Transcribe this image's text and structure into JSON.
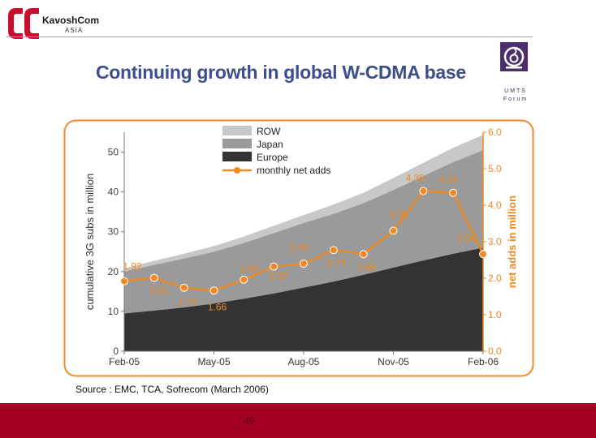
{
  "header": {
    "logo_name": "KavoshCom",
    "logo_sub": "ASIA",
    "umts_logo": "UMTS Forum",
    "umts_line1": "UMTS",
    "umts_line2": "Forum"
  },
  "slide": {
    "title": "Continuing growth in global W-CDMA base",
    "source": "Source : EMC, TCA, Sofrecom (March 2006)",
    "page_number": "49"
  },
  "colors": {
    "orange": "#f08a24",
    "europe": "#333333",
    "japan": "#9a9a9a",
    "row": "#c8c8c8",
    "title": "#3d4e8c",
    "footer": "#a40021"
  },
  "chart_data": {
    "type": "area",
    "title": "",
    "x": [
      "Feb-05",
      "Mar-05",
      "Apr-05",
      "May-05",
      "Jun-05",
      "Jul-05",
      "Aug-05",
      "Sep-05",
      "Oct-05",
      "Nov-05",
      "Dec-05",
      "Jan-06",
      "Feb-06"
    ],
    "x_tick_labels": [
      "Feb-05",
      "May-05",
      "Aug-05",
      "Nov-05",
      "Feb-06"
    ],
    "ylabel_left": "cumulative 3G subs in million",
    "ylabel_right": "net adds in million",
    "ylim_left": [
      0,
      55
    ],
    "ylim_right": [
      0,
      6.0
    ],
    "yticks_left": [
      "0",
      "10",
      "20",
      "30",
      "40",
      "50"
    ],
    "yticks_right": [
      "0.0",
      "1.0",
      "2.0",
      "3.0",
      "4.0",
      "5.0",
      "6.0"
    ],
    "legend_position": "top-left",
    "series": [
      {
        "name": "Europe",
        "kind": "stacked-area",
        "color": "#333333",
        "values": [
          9.5,
          10.2,
          11.0,
          12.0,
          13.2,
          14.5,
          16.0,
          17.5,
          19.2,
          21.0,
          22.8,
          24.5,
          26.0
        ]
      },
      {
        "name": "Japan",
        "kind": "stacked-area",
        "color": "#9a9a9a",
        "values": [
          10.5,
          11.5,
          12.3,
          13.0,
          14.0,
          15.2,
          16.2,
          17.0,
          18.0,
          19.5,
          21.2,
          23.0,
          24.5
        ]
      },
      {
        "name": "ROW",
        "kind": "stacked-area",
        "color": "#c8c8c8",
        "values": [
          0.8,
          1.0,
          1.2,
          1.4,
          1.6,
          1.8,
          2.0,
          2.3,
          2.6,
          3.0,
          3.3,
          3.6,
          3.8
        ]
      },
      {
        "name": "monthly net adds",
        "kind": "line",
        "axis": "right",
        "color": "#f08a24",
        "values": [
          1.92,
          2.01,
          1.74,
          1.66,
          1.96,
          2.32,
          2.4,
          2.77,
          2.66,
          3.3,
          4.39,
          4.34,
          2.66
        ],
        "labels": [
          "1.92",
          "2.01",
          "1.74",
          "1.66",
          "1.96",
          "2.32",
          "2.40",
          "2.77",
          "2.66",
          "3.30",
          "4.39",
          "4.34",
          "2.66"
        ]
      }
    ]
  }
}
